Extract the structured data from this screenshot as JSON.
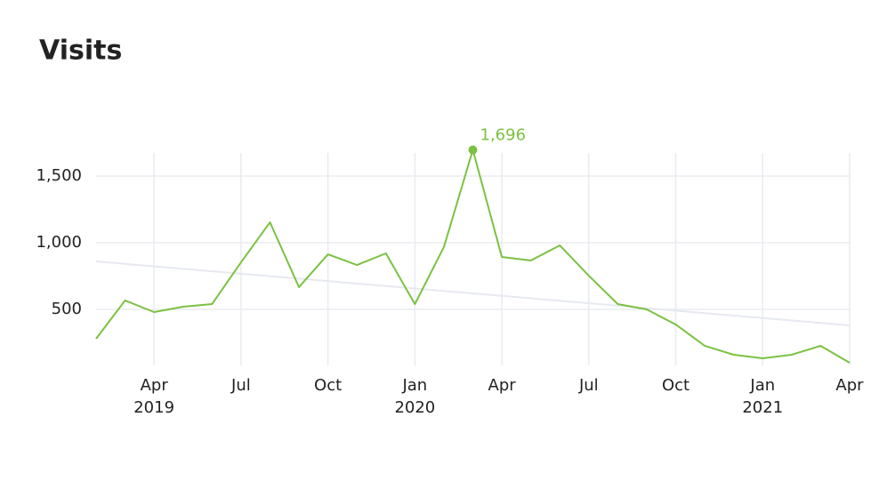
{
  "chart_data": {
    "type": "line",
    "title": "Visits",
    "x": [
      "2019-02",
      "2019-03",
      "2019-04",
      "2019-05",
      "2019-06",
      "2019-07",
      "2019-08",
      "2019-09",
      "2019-10",
      "2019-11",
      "2019-12",
      "2020-01",
      "2020-02",
      "2020-03",
      "2020-04",
      "2020-05",
      "2020-06",
      "2020-07",
      "2020-08",
      "2020-09",
      "2020-10",
      "2020-11",
      "2020-12",
      "2021-01",
      "2021-02",
      "2021-03",
      "2021-04"
    ],
    "series": [
      {
        "color": "#7cc142",
        "values": [
          280,
          567,
          480,
          520,
          540,
          853,
          1153,
          667,
          913,
          833,
          920,
          540,
          967,
          1696,
          893,
          867,
          980,
          753,
          540,
          500,
          387,
          227,
          160,
          133,
          160,
          227,
          100
        ],
        "value_labels": [
          null,
          null,
          null,
          null,
          null,
          null,
          null,
          null,
          null,
          null,
          null,
          null,
          null,
          "1,696",
          null,
          null,
          null,
          null,
          null,
          null,
          null,
          null,
          null,
          null,
          null,
          null,
          null
        ]
      }
    ],
    "trend": {
      "color": "#e6e9f0",
      "values": [
        860,
        380
      ]
    },
    "xlim": [
      "2019-02",
      "2021-04"
    ],
    "xticks": [
      {
        "value": "2019-04",
        "label": [
          "Apr",
          "2019"
        ]
      },
      {
        "value": "2019-07",
        "label": [
          "Jul"
        ]
      },
      {
        "value": "2019-10",
        "label": [
          "Oct"
        ]
      },
      {
        "value": "2020-01",
        "label": [
          "Jan",
          "2020"
        ]
      },
      {
        "value": "2020-04",
        "label": [
          "Apr"
        ]
      },
      {
        "value": "2020-07",
        "label": [
          "Jul"
        ]
      },
      {
        "value": "2020-10",
        "label": [
          "Oct"
        ]
      },
      {
        "value": "2021-01",
        "label": [
          "Jan",
          "2021"
        ]
      },
      {
        "value": "2021-04",
        "label": [
          "Apr"
        ]
      }
    ],
    "ylim": [
      80,
      1700
    ],
    "yticks": [
      500,
      {
        "value": 1000,
        "label": "1,000"
      },
      {
        "value": 1500,
        "label": "1,500"
      }
    ],
    "grid": true
  }
}
